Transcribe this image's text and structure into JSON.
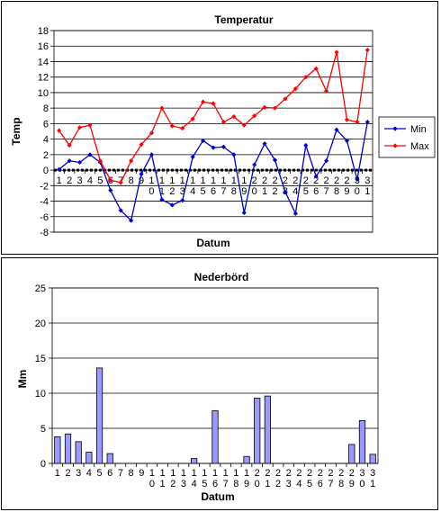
{
  "chart_data": [
    {
      "type": "line",
      "title": "Temperatur",
      "xlabel": "Datum",
      "ylabel": "Temp",
      "ylim": [
        -8,
        18
      ],
      "ytick_step": 2,
      "grid": true,
      "legend": "right",
      "categories": [
        "1",
        "2",
        "3",
        "4",
        "5",
        "6",
        "7",
        "8",
        "9",
        "10",
        "11",
        "12",
        "13",
        "14",
        "15",
        "16",
        "17",
        "18",
        "19",
        "20",
        "21",
        "22",
        "23",
        "24",
        "25",
        "26",
        "27",
        "28",
        "29",
        "30",
        "31"
      ],
      "series": [
        {
          "name": "Min",
          "color": "#0000CC",
          "values": [
            0.1,
            1.2,
            1.0,
            2.0,
            1.0,
            -2.6,
            -5.2,
            -6.5,
            -0.5,
            2.0,
            -3.8,
            -4.5,
            -3.9,
            1.7,
            3.8,
            2.9,
            3.0,
            2.0,
            -5.5,
            0.7,
            3.4,
            1.3,
            -2.8,
            -5.6,
            3.2,
            -0.8,
            1.2,
            5.2,
            3.8,
            -1.2,
            6.2
          ]
        },
        {
          "name": "Max",
          "color": "#FF0000",
          "values": [
            5.1,
            3.2,
            5.5,
            5.8,
            1.2,
            -1.3,
            -1.6,
            1.2,
            3.3,
            4.8,
            8.0,
            5.7,
            5.4,
            6.6,
            8.8,
            8.6,
            6.2,
            6.9,
            5.8,
            7.0,
            8.1,
            8.0,
            9.2,
            10.5,
            12.0,
            13.1,
            10.2,
            15.2,
            6.5,
            6.2,
            15.5
          ]
        }
      ]
    },
    {
      "type": "bar",
      "title": "Nederbörd",
      "xlabel": "Datum",
      "ylabel": "Mm",
      "ylim": [
        0,
        25
      ],
      "ytick_step": 5,
      "grid": true,
      "bar_color": "#9999FF",
      "categories": [
        "1",
        "2",
        "3",
        "4",
        "5",
        "6",
        "7",
        "8",
        "9",
        "10",
        "11",
        "12",
        "13",
        "14",
        "15",
        "16",
        "17",
        "18",
        "19",
        "20",
        "21",
        "22",
        "23",
        "24",
        "25",
        "26",
        "27",
        "28",
        "29",
        "30",
        "31"
      ],
      "values": [
        3.8,
        4.2,
        3.1,
        1.6,
        13.6,
        1.4,
        0,
        0,
        0,
        0,
        0,
        0,
        0,
        0.7,
        0,
        7.5,
        0,
        0,
        1.0,
        9.3,
        9.6,
        0,
        0,
        0,
        0,
        0,
        0,
        0,
        2.7,
        6.1,
        1.3
      ]
    }
  ]
}
